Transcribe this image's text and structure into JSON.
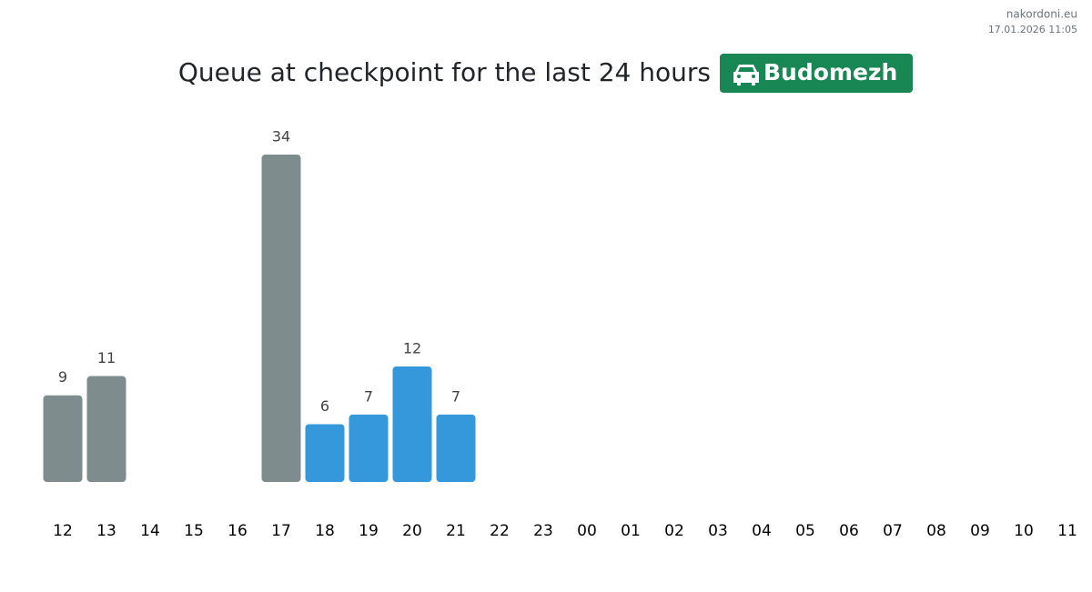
{
  "header": {
    "site": "nakordoni.eu",
    "timestamp": "17.01.2026 11:05"
  },
  "chart_data": {
    "type": "bar",
    "title": "Queue at checkpoint for the last 24 hours",
    "badge": "Budomezh",
    "categories": [
      "12",
      "13",
      "14",
      "15",
      "16",
      "17",
      "18",
      "19",
      "20",
      "21",
      "22",
      "23",
      "00",
      "01",
      "02",
      "03",
      "04",
      "05",
      "06",
      "07",
      "08",
      "09",
      "10",
      "11"
    ],
    "values": [
      9,
      11,
      null,
      null,
      null,
      34,
      6,
      7,
      12,
      7,
      null,
      null,
      null,
      null,
      null,
      null,
      null,
      null,
      null,
      null,
      null,
      null,
      null,
      null
    ],
    "colors": [
      "#7f8c8d",
      "#7f8c8d",
      null,
      null,
      null,
      "#7f8c8d",
      "#3498db",
      "#3498db",
      "#3498db",
      "#3498db",
      null,
      null,
      null,
      null,
      null,
      null,
      null,
      null,
      null,
      null,
      null,
      null,
      null,
      null
    ]
  }
}
